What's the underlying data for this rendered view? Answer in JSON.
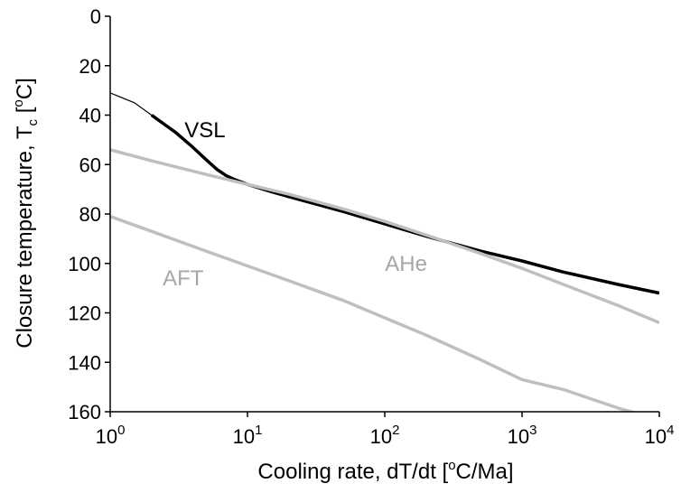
{
  "chart_data": {
    "type": "line",
    "xlabel": {
      "pre": "Cooling rate, dT/dt [",
      "sup": "o",
      "post": "C/Ma]"
    },
    "ylabel": {
      "pre": "Closure temperature, T",
      "sub": "c",
      "mid": " [",
      "sup": "o",
      "post": "C]"
    },
    "x_scale": "log",
    "xlim": [
      1,
      10000
    ],
    "ylim": [
      0,
      160
    ],
    "y_inverted": true,
    "x_ticks": [
      {
        "base": "10",
        "exp": "0"
      },
      {
        "base": "10",
        "exp": "1"
      },
      {
        "base": "10",
        "exp": "2"
      },
      {
        "base": "10",
        "exp": "3"
      },
      {
        "base": "10",
        "exp": "4"
      }
    ],
    "y_ticks": [
      "0",
      "20",
      "40",
      "60",
      "80",
      "100",
      "120",
      "140",
      "160"
    ],
    "grid": false,
    "legend": "none",
    "series": [
      {
        "name": "VSL",
        "color": "#000000",
        "x": [
          1,
          1.5,
          2,
          3,
          4,
          5,
          6,
          7,
          8,
          10,
          15,
          20,
          50,
          100,
          200,
          500,
          1000,
          2000,
          5000,
          10000
        ],
        "y": [
          31,
          35,
          40,
          47,
          53,
          58,
          62,
          64.5,
          66,
          68,
          71,
          73,
          79,
          84,
          89,
          95,
          99,
          103.5,
          108.5,
          112
        ]
      },
      {
        "name": "AHe",
        "color": "#bfbfbf",
        "x": [
          1,
          2,
          5,
          10,
          20,
          50,
          100,
          200,
          500,
          1000,
          2000,
          5000,
          10000
        ],
        "y": [
          54,
          58.5,
          64,
          68,
          72,
          78,
          83,
          88.5,
          96,
          102,
          108.5,
          117,
          124
        ]
      },
      {
        "name": "AFT",
        "color": "#bfbfbf",
        "x": [
          1,
          2,
          5,
          10,
          20,
          50,
          100,
          200,
          500,
          1000,
          2000,
          5000,
          7200
        ],
        "y": [
          81,
          87,
          95,
          101,
          107,
          115,
          122,
          129,
          139,
          147,
          151,
          158.5,
          161
        ]
      }
    ]
  }
}
